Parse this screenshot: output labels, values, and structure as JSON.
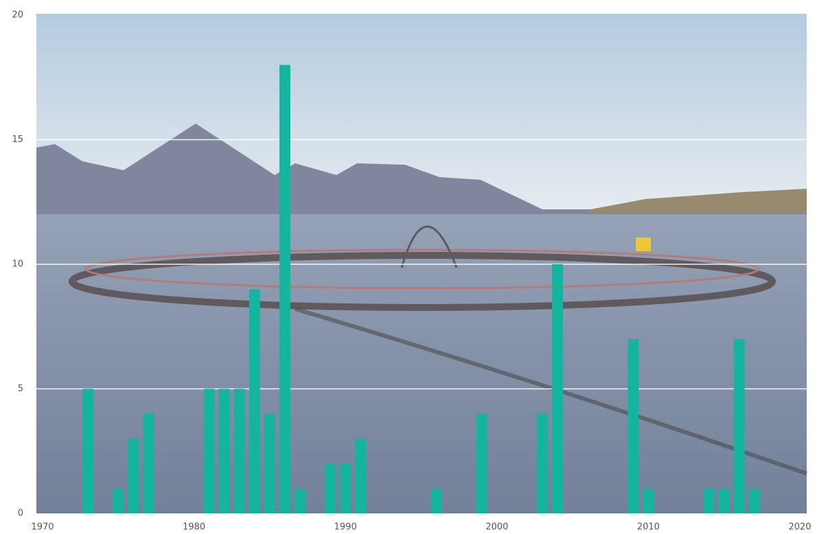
{
  "chart_data": {
    "type": "bar",
    "x": [
      1973,
      1975,
      1976,
      1977,
      1981,
      1982,
      1983,
      1984,
      1985,
      1986,
      1987,
      1989,
      1990,
      1991,
      1996,
      1999,
      2003,
      2004,
      2009,
      2010,
      2014,
      2015,
      2016,
      2017
    ],
    "values": [
      5,
      1,
      3,
      4,
      5,
      5,
      5,
      9,
      4,
      18,
      1,
      2,
      2,
      3,
      1,
      4,
      4,
      10,
      7,
      1,
      1,
      1,
      7,
      1
    ],
    "color": "#14b59f",
    "xlim": [
      1970,
      2020
    ],
    "xticks": [
      1970,
      1980,
      1990,
      2000,
      2010,
      2020
    ],
    "ylim": [
      0,
      20
    ],
    "yticks": [
      0,
      5,
      10,
      15,
      20
    ],
    "grid": true
  }
}
